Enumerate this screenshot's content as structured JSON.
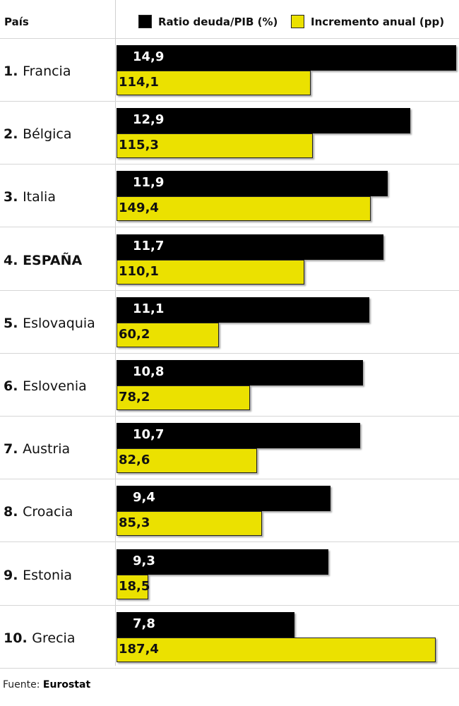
{
  "header": {
    "column_title": "País"
  },
  "legend": [
    {
      "label": "Ratio deuda/PIB (%)",
      "color": "#000000"
    },
    {
      "label": "Incremento anual (pp)",
      "color": "#ebe100"
    }
  ],
  "chart_data": {
    "type": "bar",
    "orientation": "horizontal",
    "categories": [
      "Francia",
      "Bélgica",
      "Italia",
      "ESPAÑA",
      "Eslovaquia",
      "Eslovenia",
      "Austria",
      "Croacia",
      "Estonia",
      "Grecia"
    ],
    "ranks": [
      "1.",
      "2.",
      "3.",
      "4.",
      "5.",
      "6.",
      "7.",
      "8.",
      "9.",
      "10."
    ],
    "series": [
      {
        "name": "Ratio deuda/PIB (%)",
        "values": [
          14.9,
          12.9,
          11.9,
          11.7,
          11.1,
          10.8,
          10.7,
          9.4,
          9.3,
          7.8
        ],
        "labels": [
          "14,9",
          "12,9",
          "11,9",
          "11,7",
          "11,1",
          "10,8",
          "10,7",
          "9,4",
          "9,3",
          "7,8"
        ]
      },
      {
        "name": "Incremento anual (pp)",
        "values": [
          114.1,
          115.3,
          149.4,
          110.1,
          60.2,
          78.2,
          82.6,
          85.3,
          18.5,
          187.4
        ],
        "labels": [
          "114,1",
          "115,3",
          "149,4",
          "110,1",
          "60,2",
          "78,2",
          "82,6",
          "85,3",
          "18,5",
          "187,4"
        ]
      }
    ],
    "highlight": "ESPAÑA",
    "grid": false,
    "legend_position": "top-right"
  },
  "source": {
    "prefix": "Fuente:",
    "name": "Eurostat"
  }
}
